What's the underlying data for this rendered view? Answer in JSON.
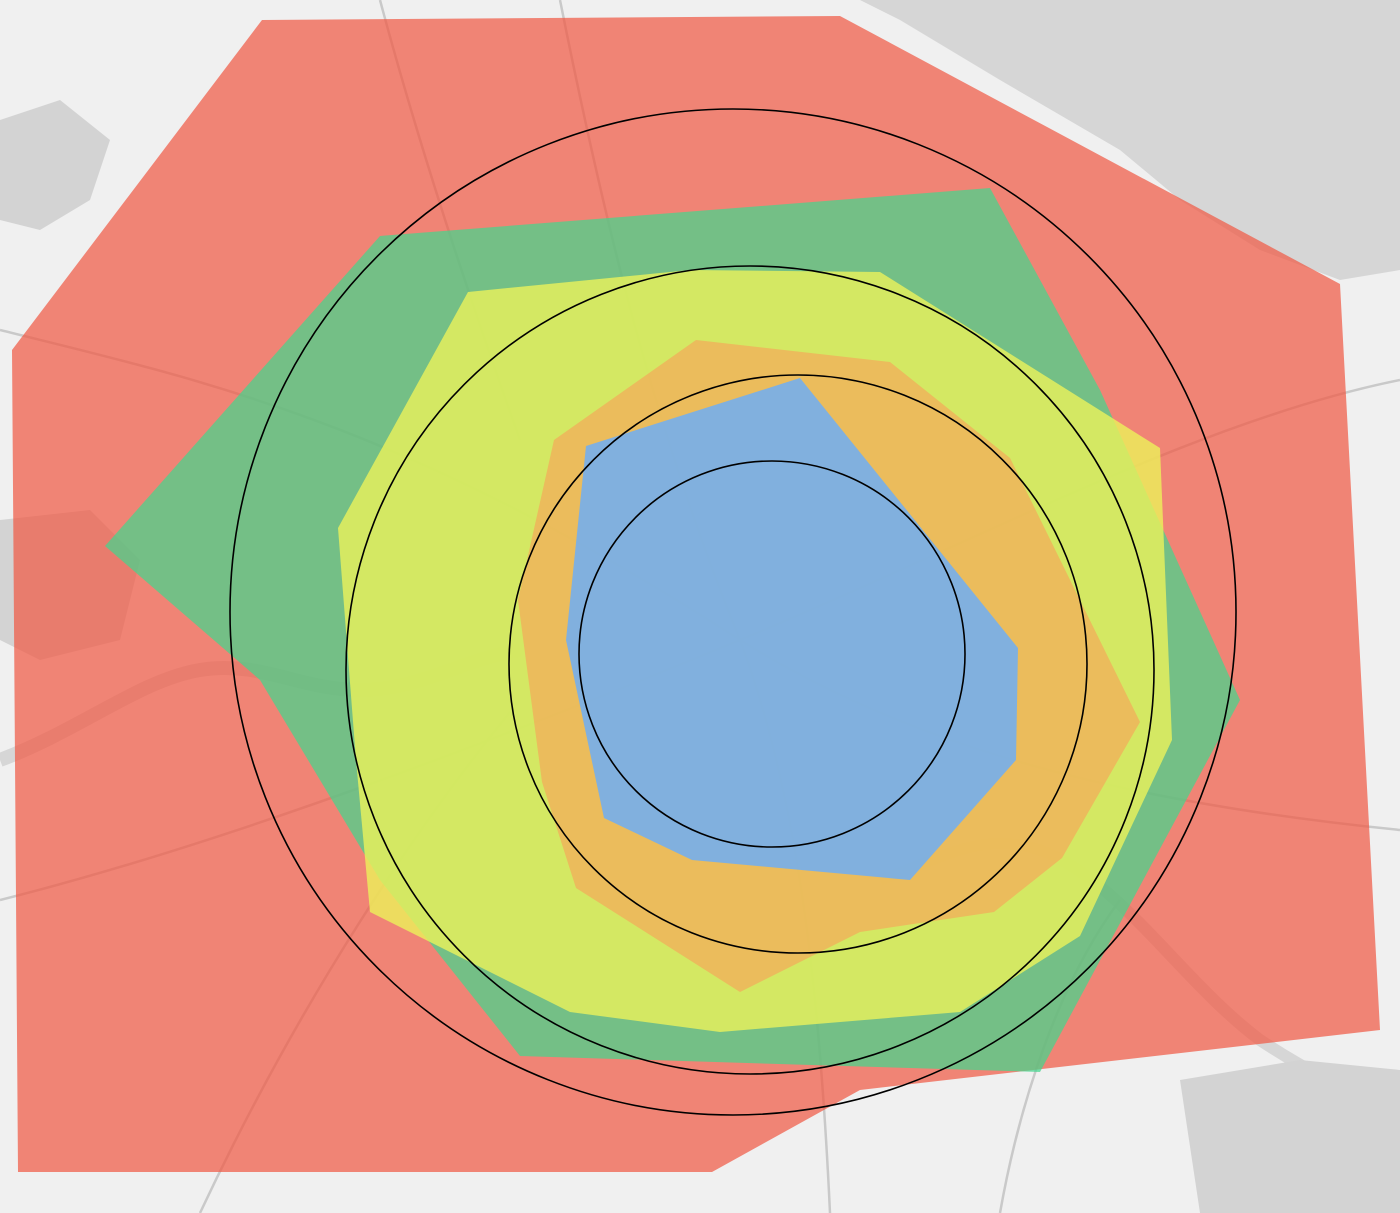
{
  "map": {
    "basemap": {
      "land_color": "#f0f0f0",
      "water_color": "#d6d6d6",
      "builtup_color": "#d3d3d3",
      "road_color": "#c9c9c9"
    },
    "isochrones": [
      {
        "zone": 5,
        "color": "#f05a45",
        "opacity": 0.72
      },
      {
        "zone": 4,
        "color": "#44d68e",
        "opacity": 0.72
      },
      {
        "zone": 3,
        "color": "#ecf25a",
        "opacity": 0.8
      },
      {
        "zone": 2,
        "color": "#f0b05a",
        "opacity": 0.8
      },
      {
        "zone": 1,
        "color": "#6faef5",
        "opacity": 0.85
      }
    ],
    "rings": {
      "count": 4,
      "stroke_color": "#000000"
    }
  }
}
